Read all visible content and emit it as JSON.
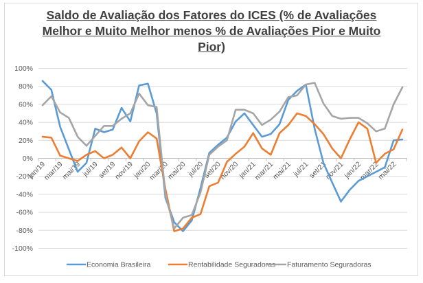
{
  "chart_data": {
    "type": "line",
    "title_lines": [
      "Saldo de Avaliação dos Fatores do ICES (% de Avaliações",
      "Melhor e Muito Melhor menos % de Avaliações Pior e Muito",
      "Pior)"
    ],
    "xlabel": "",
    "ylabel": "",
    "ylim": [
      -100,
      100
    ],
    "y_ticks": [
      100,
      80,
      60,
      40,
      20,
      0,
      -20,
      -40,
      -60,
      -80,
      -100
    ],
    "y_tick_labels": [
      "100%",
      "80%",
      "60%",
      "40%",
      "20%",
      "0%",
      "-20%",
      "-40%",
      "-60%",
      "-80%",
      "-100%"
    ],
    "grid": true,
    "legend_position": "bottom",
    "x": [
      "jan/19",
      "fev/19",
      "mar/19",
      "abr/19",
      "mai/19",
      "jun/19",
      "jul/19",
      "ago/19",
      "set/19",
      "out/19",
      "nov/19",
      "dez/19",
      "jan/20",
      "fev/20",
      "mar/20",
      "abr/20",
      "mai/20",
      "jun/20",
      "jul/20",
      "ago/20",
      "set/20",
      "out/20",
      "nov/20",
      "dez/20",
      "jan/21",
      "fev/21",
      "mar/21",
      "abr/21",
      "mai/21",
      "jun/21",
      "jul/21",
      "ago/21",
      "set/21",
      "out/21",
      "nov/21",
      "dez/21",
      "jan/22",
      "fev/22",
      "mar/22",
      "abr/22",
      "mai/22",
      "jun/22"
    ],
    "x_tick_labels": [
      "jan/19",
      "mar/19",
      "mai/19",
      "jul/19",
      "set/19",
      "nov/19",
      "jan/20",
      "mar/20",
      "mai/20",
      "jul/20",
      "set/20",
      "nov/20",
      "jan/21",
      "mar/21",
      "mai/21",
      "jul/21",
      "set/21",
      "nov/21",
      "jan/22",
      "mar/22",
      "mai/22"
    ],
    "series": [
      {
        "name": "Economia Brasileira",
        "color": "#5b9bd5",
        "values": [
          86,
          76,
          35,
          10,
          -15,
          -5,
          33,
          29,
          32,
          56,
          41,
          81,
          83,
          50,
          -44,
          -71,
          -81,
          -69,
          -33,
          6,
          15,
          23,
          41,
          50,
          37,
          24,
          27,
          38,
          65,
          75,
          82,
          33,
          -5,
          -27,
          -48,
          -35,
          -25,
          -20,
          -15,
          -10,
          20,
          21
        ]
      },
      {
        "name": "Rentabilidade Seguradoras",
        "color": "#ed7d31",
        "values": [
          24,
          23,
          3,
          0,
          -3,
          4,
          8,
          0,
          4,
          12,
          0,
          19,
          29,
          22,
          -34,
          -81,
          -78,
          -66,
          -62,
          -31,
          -27,
          -4,
          5,
          13,
          28,
          11,
          4,
          28,
          37,
          50,
          47,
          38,
          27,
          11,
          0,
          21,
          40,
          33,
          -5,
          5,
          10,
          32
        ]
      },
      {
        "name": "Faturamento Seguradoras",
        "color": "#a5a5a5",
        "values": [
          59,
          69,
          51,
          45,
          24,
          14,
          25,
          36,
          36,
          44,
          50,
          72,
          59,
          57,
          -40,
          -78,
          -66,
          -63,
          -38,
          4,
          13,
          20,
          54,
          54,
          50,
          37,
          43,
          52,
          68,
          70,
          82,
          84,
          61,
          47,
          44,
          45,
          45,
          39,
          30,
          33,
          60,
          79
        ]
      }
    ]
  }
}
